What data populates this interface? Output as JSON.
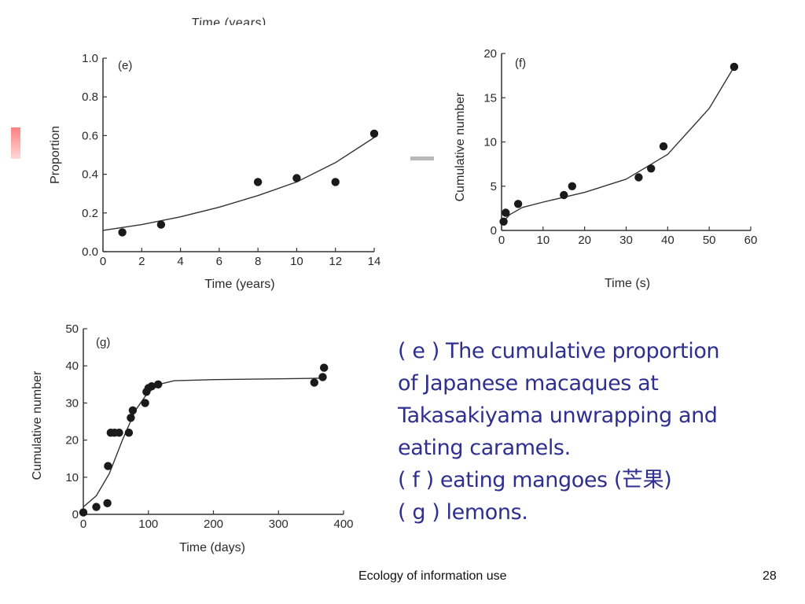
{
  "slide": {
    "cut_title": "Time (years)",
    "caption_lines": [
      "( e ) The cumulative proportion",
      "of Japanese macaques at",
      "Takasakiyama unwrapping and",
      "eating caramels.",
      "( f  ) eating mangoes (芒果)",
      "( g ) lemons."
    ],
    "footer_title": "Ecology of information use",
    "page_number": "28",
    "accent_color": "#2f2f8f"
  },
  "chart_data": [
    {
      "type": "scatter",
      "panel_label": "(e)",
      "xlabel": "Time (years)",
      "ylabel": "Proportion",
      "xlim": [
        0,
        14
      ],
      "ylim": [
        0,
        1.0
      ],
      "xticks": [
        "0",
        "2",
        "4",
        "6",
        "8",
        "10",
        "12",
        "14"
      ],
      "yticks": [
        "0.0",
        "0.2",
        "0.4",
        "0.6",
        "0.8",
        "1.0"
      ],
      "x": [
        1,
        3,
        8,
        10,
        12,
        14
      ],
      "y": [
        0.1,
        0.14,
        0.36,
        0.38,
        0.36,
        0.61
      ],
      "fit_curve": {
        "x": [
          0,
          2,
          4,
          6,
          8,
          10,
          12,
          14
        ],
        "y": [
          0.11,
          0.14,
          0.18,
          0.23,
          0.29,
          0.36,
          0.46,
          0.59
        ]
      },
      "grid": false
    },
    {
      "type": "scatter",
      "panel_label": "(f)",
      "xlabel": "Time (s)",
      "ylabel": "Cumulative number",
      "xlim": [
        0,
        60
      ],
      "ylim": [
        0,
        20
      ],
      "xticks": [
        "0",
        "10",
        "20",
        "30",
        "40",
        "50",
        "60"
      ],
      "yticks": [
        "0",
        "5",
        "10",
        "15",
        "20"
      ],
      "x": [
        0.5,
        1,
        4,
        15,
        17,
        33,
        36,
        39,
        56
      ],
      "y": [
        1,
        2,
        3,
        4,
        5,
        6,
        7,
        9.5,
        18.5
      ],
      "fit_curve": {
        "x": [
          0,
          2,
          5,
          10,
          20,
          30,
          40,
          50,
          56
        ],
        "y": [
          0.8,
          1.8,
          2.6,
          3.2,
          4.3,
          5.8,
          8.6,
          13.8,
          18.5
        ]
      },
      "grid": false
    },
    {
      "type": "scatter",
      "panel_label": "(g)",
      "xlabel": "Time (days)",
      "ylabel": "Cumulative number",
      "xlim": [
        0,
        400
      ],
      "ylim": [
        0,
        50
      ],
      "xticks": [
        "0",
        "100",
        "200",
        "300",
        "400"
      ],
      "yticks": [
        "0",
        "10",
        "20",
        "30",
        "40",
        "50"
      ],
      "x": [
        0,
        20,
        37,
        38,
        42,
        48,
        55,
        70,
        73,
        76,
        95,
        97,
        100,
        105,
        115,
        355,
        368,
        370
      ],
      "y": [
        0.5,
        2,
        3,
        13,
        22,
        22,
        22,
        22,
        26,
        28,
        30,
        33,
        34,
        34.5,
        35,
        35.5,
        37,
        39.5
      ],
      "fit_curve": {
        "x": [
          0,
          20,
          40,
          60,
          80,
          100,
          120,
          140,
          200,
          300,
          370
        ],
        "y": [
          2,
          5,
          11,
          20,
          28,
          33,
          35.2,
          36,
          36.3,
          36.5,
          36.7
        ]
      },
      "grid": false
    }
  ]
}
